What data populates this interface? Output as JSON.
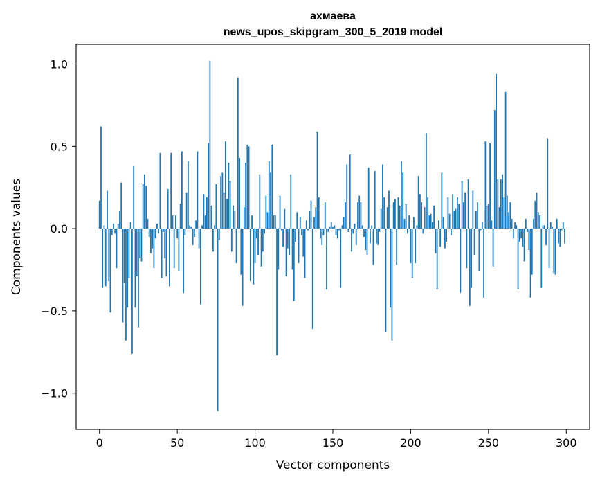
{
  "chart_data": {
    "type": "bar",
    "title": "ахмаева",
    "subtitle": "news_upos_skipgram_300_5_2019 model",
    "xlabel": "Vector components",
    "ylabel": "Components values",
    "xlim": [
      -15,
      315
    ],
    "ylim": [
      -1.22,
      1.12
    ],
    "xticks": [
      0,
      50,
      100,
      150,
      200,
      250,
      300
    ],
    "yticks": [
      -1.0,
      -0.5,
      0.0,
      0.5,
      1.0
    ],
    "xtick_labels": [
      "0",
      "50",
      "100",
      "150",
      "200",
      "250",
      "300"
    ],
    "ytick_labels": [
      "−1.0",
      "−0.5",
      "0.0",
      "0.5",
      "1.0"
    ],
    "bar_color": "#1f77b4",
    "grid": false,
    "values": [
      0.17,
      0.62,
      -0.36,
      0.02,
      -0.35,
      0.23,
      -0.32,
      -0.51,
      -0.04,
      0.03,
      -0.03,
      -0.24,
      0.03,
      0.11,
      0.28,
      -0.57,
      -0.33,
      -0.68,
      -0.48,
      -0.3,
      0.04,
      -0.76,
      0.38,
      -0.48,
      -0.29,
      -0.6,
      -0.18,
      -0.2,
      0.27,
      0.33,
      0.26,
      0.06,
      -0.05,
      -0.15,
      -0.12,
      -0.24,
      -0.06,
      0.03,
      -0.03,
      0.46,
      -0.3,
      -0.02,
      -0.18,
      -0.29,
      0.24,
      -0.35,
      0.46,
      0.08,
      -0.24,
      0.08,
      -0.06,
      -0.26,
      0.15,
      0.47,
      -0.39,
      -0.04,
      0.22,
      0.41,
      0.02,
      0.01,
      -0.1,
      -0.05,
      0.05,
      0.47,
      -0.12,
      -0.46,
      0.02,
      0.21,
      0.08,
      0.19,
      0.52,
      1.02,
      0.14,
      -0.14,
      0.02,
      0.27,
      -1.11,
      -0.07,
      0.32,
      0.34,
      0.22,
      0.53,
      0.18,
      0.4,
      0.29,
      -0.14,
      0.14,
      0.11,
      -0.21,
      0.92,
      0.43,
      -0.28,
      -0.47,
      0.13,
      0.4,
      0.51,
      0.5,
      -0.32,
      0.08,
      -0.34,
      -0.21,
      -0.06,
      -0.16,
      0.33,
      -0.23,
      -0.14,
      -0.03,
      0.2,
      0.1,
      0.41,
      0.34,
      0.51,
      0.08,
      0.08,
      -0.77,
      -0.25,
      0.2,
      -0.01,
      -0.11,
      0.12,
      -0.29,
      -0.12,
      -0.16,
      0.33,
      -0.25,
      -0.44,
      -0.08,
      0.1,
      -0.21,
      0.07,
      -0.04,
      -0.17,
      -0.3,
      0.05,
      -0.01,
      0.11,
      0.17,
      -0.61,
      0.07,
      0.13,
      0.59,
      0.19,
      -0.06,
      -0.1,
      -0.04,
      0.16,
      -0.37,
      -0.02,
      0.01,
      0.04,
      0.01,
      0.02,
      -0.04,
      -0.06,
      -0.01,
      -0.36,
      0.02,
      0.07,
      0.16,
      0.39,
      -0.02,
      0.45,
      -0.14,
      -0.03,
      0.03,
      -0.1,
      0.16,
      0.2,
      0.16,
      0.02,
      -0.05,
      -0.13,
      -0.16,
      0.37,
      -0.09,
      0.02,
      -0.22,
      0.35,
      -0.09,
      -0.1,
      -0.02,
      0.12,
      0.39,
      0.19,
      -0.63,
      0.13,
      0.23,
      -0.48,
      -0.68,
      0.16,
      0.18,
      -0.22,
      0.19,
      0.14,
      0.41,
      0.34,
      0.06,
      0.15,
      -0.03,
      0.08,
      -0.21,
      -0.3,
      0.07,
      -0.21,
      0.02,
      0.32,
      0.21,
      0.16,
      -0.03,
      0.13,
      0.58,
      0.19,
      0.08,
      0.09,
      0.04,
      0.14,
      -0.15,
      -0.37,
      0.05,
      -0.11,
      0.34,
      0.07,
      -0.12,
      -0.08,
      0.19,
      0.09,
      -0.04,
      0.21,
      0.11,
      0.12,
      0.19,
      0.15,
      -0.39,
      0.29,
      0.16,
      0.22,
      -0.24,
      0.3,
      -0.47,
      -0.36,
      0.23,
      -0.16,
      0.11,
      0.16,
      -0.26,
      -0.01,
      0.04,
      -0.42,
      0.53,
      0.14,
      0.15,
      0.52,
      0.05,
      -0.23,
      0.72,
      0.94,
      0.3,
      0.13,
      0.3,
      0.33,
      0.19,
      0.83,
      0.2,
      0.1,
      0.16,
      0.06,
      -0.06,
      0.04,
      0.02,
      -0.37,
      -0.08,
      -0.06,
      -0.11,
      -0.2,
      0.06,
      -0.02,
      -0.13,
      -0.42,
      -0.28,
      0.06,
      0.17,
      0.22,
      0.1,
      0.08,
      -0.36,
      0.02,
      0.02,
      -0.1,
      0.55,
      -0.24,
      0.04,
      0.01,
      -0.27,
      -0.28,
      0.06,
      -0.09,
      -0.11,
      -0.01,
      0.04,
      -0.09
    ]
  }
}
